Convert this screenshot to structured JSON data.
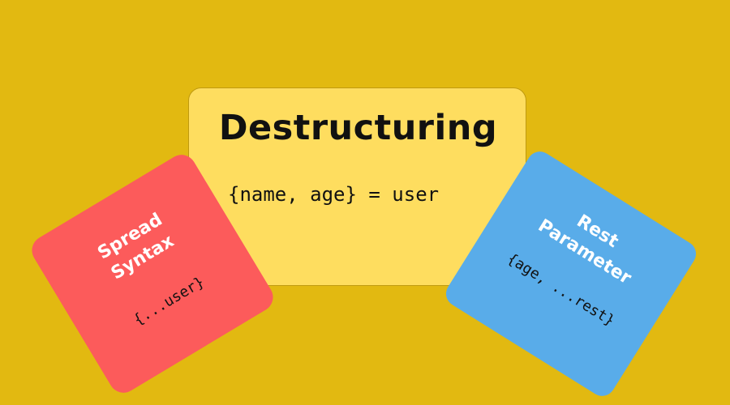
{
  "background_color": "#e2b911",
  "cards": {
    "main": {
      "title": "Destructuring",
      "code": "{name, age} = user",
      "color": "#fedd5f"
    },
    "spread": {
      "title_line1": "Spread",
      "title_line2": "Syntax",
      "code": "{...user}",
      "color": "#fc5b5b"
    },
    "rest": {
      "title_line1": "Rest",
      "title_line2": "Parameter",
      "code": "{age, ...rest}",
      "color": "#59ace9"
    }
  }
}
